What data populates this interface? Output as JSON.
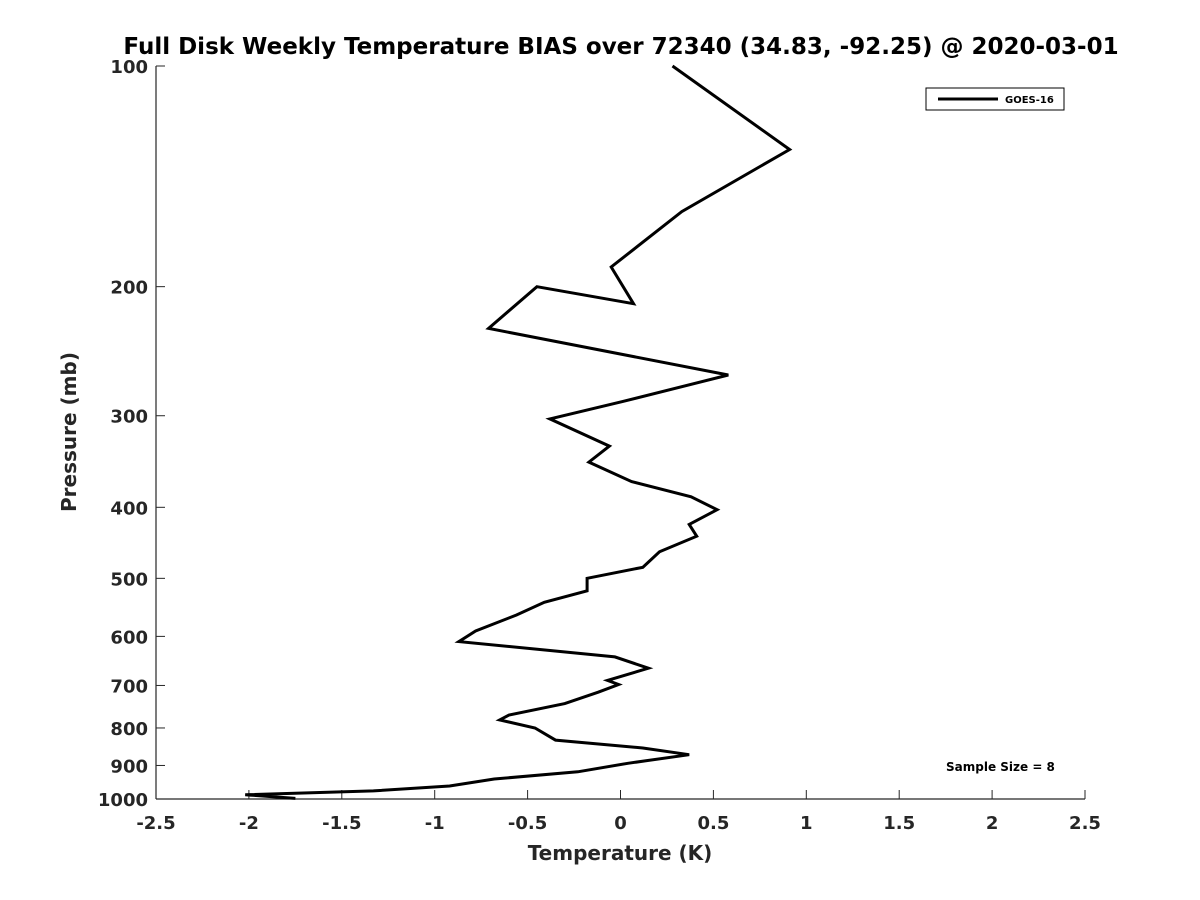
{
  "chart_data": {
    "type": "line",
    "title": "Full Disk Weekly Temperature BIAS over 72340 (34.83, -92.25) @ 2020-03-01",
    "xlabel": "Temperature (K)",
    "ylabel": "Pressure (mb)",
    "xlim": [
      -2.5,
      2.5
    ],
    "ylim": [
      1000,
      100
    ],
    "y_scale": "log",
    "y_reversed": true,
    "x_ticks": [
      -2.5,
      -2,
      -1.5,
      -1,
      -0.5,
      0,
      0.5,
      1,
      1.5,
      2,
      2.5
    ],
    "x_tick_labels": [
      "-2.5",
      "-2",
      "-1.5",
      "-1",
      "-0.5",
      "0",
      "0.5",
      "1",
      "1.5",
      "2",
      "2.5"
    ],
    "y_ticks": [
      100,
      200,
      300,
      400,
      500,
      600,
      700,
      800,
      900,
      1000
    ],
    "y_tick_labels": [
      "100",
      "200",
      "300",
      "400",
      "500",
      "600",
      "700",
      "800",
      "900",
      "1000"
    ],
    "grid": false,
    "legend_position": "top-right",
    "annotation": "Sample Size = 8",
    "series": [
      {
        "name": "GOES-16",
        "color": "#000000",
        "x": [
          0.28,
          0.91,
          0.33,
          -0.05,
          0.07,
          -0.45,
          -0.71,
          0.58,
          0.01,
          -0.38,
          -0.06,
          -0.17,
          0.06,
          0.38,
          0.52,
          0.37,
          0.41,
          0.21,
          0.12,
          -0.18,
          -0.18,
          -0.41,
          -0.56,
          -0.78,
          -0.87,
          -0.03,
          0.15,
          -0.07,
          -0.01,
          -0.12,
          -0.3,
          -0.6,
          -0.65,
          -0.46,
          -0.35,
          0.12,
          0.37,
          0.04,
          -0.23,
          -0.68,
          -0.92,
          -1.33,
          -2.02,
          -1.75
        ],
        "y": [
          100,
          130,
          158,
          188,
          211,
          200,
          228,
          264,
          287,
          303,
          330,
          347,
          369,
          387,
          403,
          422,
          438,
          460,
          483,
          500,
          520,
          539,
          561,
          590,
          610,
          640,
          663,
          689,
          698,
          715,
          741,
          768,
          780,
          800,
          831,
          852,
          870,
          894,
          918,
          939,
          960,
          975,
          987,
          998
        ]
      }
    ]
  }
}
